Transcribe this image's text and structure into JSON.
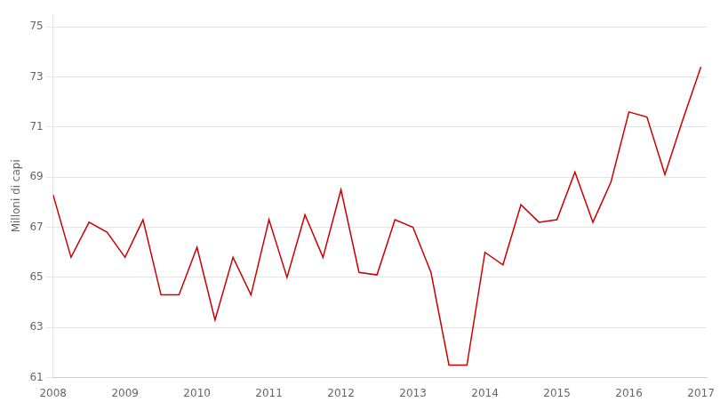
{
  "chart_data": {
    "type": "line",
    "ylabel": "Milloni di capi",
    "color": "#cc0000",
    "x": [
      2008.0,
      2008.25,
      2008.5,
      2008.75,
      2009.0,
      2009.25,
      2009.5,
      2009.75,
      2010.0,
      2010.25,
      2010.5,
      2010.75,
      2011.0,
      2011.25,
      2011.5,
      2011.75,
      2012.0,
      2012.25,
      2012.5,
      2012.75,
      2013.0,
      2013.25,
      2013.5,
      2013.75,
      2014.0,
      2014.25,
      2014.5,
      2014.75,
      2015.0,
      2015.25,
      2015.5,
      2015.75,
      2016.0,
      2016.25,
      2016.5,
      2016.75,
      2017.0
    ],
    "values": [
      68.3,
      65.8,
      67.2,
      66.8,
      65.8,
      67.3,
      64.3,
      64.3,
      66.2,
      63.3,
      65.8,
      64.3,
      67.3,
      65.0,
      67.5,
      65.8,
      68.5,
      65.2,
      65.1,
      67.3,
      67.0,
      65.2,
      61.5,
      61.5,
      66.0,
      65.5,
      67.9,
      67.2,
      67.3,
      69.2,
      67.2,
      68.8,
      71.6,
      71.4,
      69.1,
      71.3,
      73.4
    ],
    "xlim": [
      2008.0,
      2017.08
    ],
    "xticks": [
      2008,
      2009,
      2010,
      2011,
      2012,
      2013,
      2014,
      2015,
      2016,
      2017
    ],
    "ylim": [
      61,
      75.5
    ],
    "yticks": [
      61,
      63,
      65,
      67,
      69,
      71,
      73,
      75
    ],
    "grid": "y"
  }
}
